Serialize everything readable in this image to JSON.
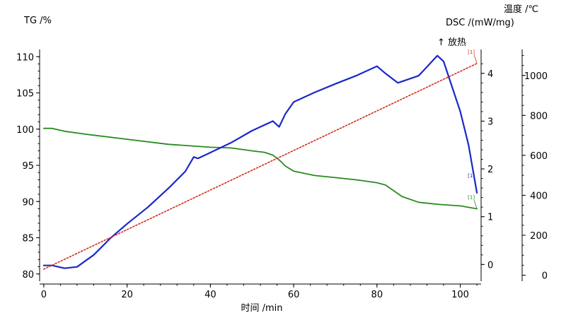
{
  "chart_data": {
    "type": "line",
    "xlabel": "时间 /min",
    "x_ticks": [
      0,
      20,
      40,
      60,
      80,
      100
    ],
    "xlim": [
      -1,
      105
    ],
    "tg_axis": {
      "label": "TG /%",
      "ticks": [
        80,
        85,
        90,
        95,
        100,
        105,
        110
      ],
      "ylim": [
        79,
        111
      ]
    },
    "dsc_axis": {
      "label": "DSC /(mW/mg)",
      "ticks": [
        0,
        1,
        2,
        3,
        4
      ],
      "ylim": [
        -0.35,
        4.5
      ],
      "annotation": "↑ 放热"
    },
    "temp_axis": {
      "label": "温度 /℃",
      "ticks": [
        0,
        200,
        400,
        600,
        800,
        1000
      ],
      "ylim": [
        -30,
        1130
      ]
    },
    "series": [
      {
        "axis": "tg",
        "color": "#2a8a1e",
        "end_marker": "[1]",
        "x": [
          0,
          2,
          5,
          10,
          20,
          30,
          40,
          45,
          50,
          53,
          55,
          56,
          57,
          58,
          60,
          65,
          70,
          75,
          80,
          82,
          84,
          86,
          90,
          95,
          100,
          104
        ],
        "y": [
          100.1,
          100.1,
          99.7,
          99.3,
          98.6,
          97.9,
          97.5,
          97.4,
          97.0,
          96.8,
          96.4,
          96.0,
          95.5,
          94.9,
          94.2,
          93.6,
          93.3,
          93.0,
          92.6,
          92.3,
          91.5,
          90.7,
          89.9,
          89.6,
          89.4,
          89.0
        ]
      },
      {
        "axis": "dsc",
        "color": "#1a28c8",
        "end_marker": "[1]",
        "x": [
          0,
          2,
          5,
          8,
          12,
          16,
          20,
          25,
          30,
          34,
          36,
          37,
          39,
          45,
          50,
          55,
          56.5,
          58,
          60,
          65,
          70,
          75,
          80,
          82,
          85,
          90,
          94.5,
          96,
          100,
          102,
          104
        ],
        "y": [
          -0.02,
          -0.02,
          -0.08,
          -0.05,
          0.2,
          0.55,
          0.85,
          1.2,
          1.6,
          1.95,
          2.25,
          2.22,
          2.3,
          2.55,
          2.8,
          3.0,
          2.88,
          3.15,
          3.4,
          3.6,
          3.78,
          3.95,
          4.15,
          4.0,
          3.8,
          3.95,
          4.37,
          4.25,
          3.2,
          2.5,
          1.5
        ]
      },
      {
        "axis": "temp",
        "color": "#d42a1a",
        "end_marker": "[1]",
        "x": [
          0,
          104
        ],
        "y": [
          30,
          1060
        ]
      }
    ]
  }
}
